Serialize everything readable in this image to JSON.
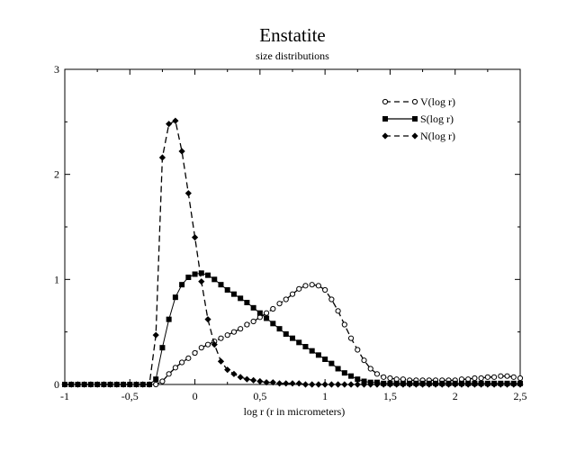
{
  "chart_data": {
    "type": "line",
    "title": "Enstatite",
    "subtitle": "size distributions",
    "xlabel": "log r (r in micrometers)",
    "ylabel": "",
    "xlim": [
      -1,
      2.5
    ],
    "ylim": [
      0,
      3
    ],
    "x_ticks": [
      -1,
      -0.5,
      0,
      0.5,
      1,
      1.5,
      2,
      2.5
    ],
    "x_tick_labels": [
      "-1",
      "-0,5",
      "0",
      "0,5",
      "1",
      "1,5",
      "2",
      "2,5"
    ],
    "y_ticks": [
      0,
      1,
      2,
      3
    ],
    "y_tick_labels": [
      "0",
      "1",
      "2",
      "3"
    ],
    "grid": false,
    "legend_position": "top-right",
    "series": [
      {
        "name": "V(log r)",
        "style": "dashed",
        "marker": "open-circle",
        "color": "#000000",
        "x": [
          -1,
          -0.95,
          -0.9,
          -0.85,
          -0.8,
          -0.75,
          -0.7,
          -0.65,
          -0.6,
          -0.55,
          -0.5,
          -0.45,
          -0.4,
          -0.35,
          -0.3,
          -0.25,
          -0.2,
          -0.15,
          -0.1,
          -0.05,
          0,
          0.05,
          0.1,
          0.15,
          0.2,
          0.25,
          0.3,
          0.35,
          0.4,
          0.45,
          0.5,
          0.55,
          0.6,
          0.65,
          0.7,
          0.75,
          0.8,
          0.85,
          0.9,
          0.95,
          1,
          1.05,
          1.1,
          1.15,
          1.2,
          1.25,
          1.3,
          1.35,
          1.4,
          1.45,
          1.5,
          1.55,
          1.6,
          1.65,
          1.7,
          1.75,
          1.8,
          1.85,
          1.9,
          1.95,
          2,
          2.05,
          2.1,
          2.15,
          2.2,
          2.25,
          2.3,
          2.35,
          2.4,
          2.45,
          2.5
        ],
        "values": [
          0,
          0,
          0,
          0,
          0,
          0,
          0,
          0,
          0,
          0,
          0,
          0,
          0,
          0,
          0,
          0.03,
          0.1,
          0.16,
          0.21,
          0.25,
          0.3,
          0.35,
          0.38,
          0.41,
          0.44,
          0.47,
          0.5,
          0.53,
          0.57,
          0.6,
          0.64,
          0.68,
          0.72,
          0.77,
          0.81,
          0.86,
          0.91,
          0.94,
          0.95,
          0.94,
          0.9,
          0.81,
          0.7,
          0.57,
          0.44,
          0.33,
          0.23,
          0.15,
          0.1,
          0.07,
          0.06,
          0.05,
          0.05,
          0.04,
          0.04,
          0.04,
          0.04,
          0.04,
          0.04,
          0.04,
          0.04,
          0.05,
          0.05,
          0.06,
          0.06,
          0.07,
          0.07,
          0.08,
          0.08,
          0.07,
          0.06
        ]
      },
      {
        "name": "S(log r)",
        "style": "solid",
        "marker": "filled-square",
        "color": "#000000",
        "x": [
          -1,
          -0.95,
          -0.9,
          -0.85,
          -0.8,
          -0.75,
          -0.7,
          -0.65,
          -0.6,
          -0.55,
          -0.5,
          -0.45,
          -0.4,
          -0.35,
          -0.3,
          -0.25,
          -0.2,
          -0.15,
          -0.1,
          -0.05,
          0,
          0.05,
          0.1,
          0.15,
          0.2,
          0.25,
          0.3,
          0.35,
          0.4,
          0.45,
          0.5,
          0.55,
          0.6,
          0.65,
          0.7,
          0.75,
          0.8,
          0.85,
          0.9,
          0.95,
          1,
          1.05,
          1.1,
          1.15,
          1.2,
          1.25,
          1.3,
          1.35,
          1.4,
          1.45,
          1.5,
          1.55,
          1.6,
          1.65,
          1.7,
          1.75,
          1.8,
          1.85,
          1.9,
          1.95,
          2,
          2.05,
          2.1,
          2.15,
          2.2,
          2.25,
          2.3,
          2.35,
          2.4,
          2.45,
          2.5
        ],
        "values": [
          0,
          0,
          0,
          0,
          0,
          0,
          0,
          0,
          0,
          0,
          0,
          0,
          0,
          0,
          0.05,
          0.35,
          0.62,
          0.83,
          0.95,
          1.02,
          1.05,
          1.06,
          1.04,
          1.0,
          0.95,
          0.9,
          0.86,
          0.82,
          0.78,
          0.73,
          0.68,
          0.63,
          0.58,
          0.53,
          0.48,
          0.44,
          0.4,
          0.36,
          0.32,
          0.28,
          0.24,
          0.2,
          0.15,
          0.11,
          0.08,
          0.05,
          0.03,
          0.02,
          0.02,
          0.01,
          0.01,
          0.01,
          0.01,
          0.01,
          0.01,
          0.01,
          0.01,
          0.01,
          0.01,
          0.01,
          0.01,
          0.01,
          0.01,
          0.01,
          0.01,
          0.01,
          0.01,
          0.01,
          0.01,
          0.01,
          0.01
        ]
      },
      {
        "name": "N(log r)",
        "style": "dashed",
        "marker": "filled-diamond",
        "color": "#000000",
        "x": [
          -1,
          -0.95,
          -0.9,
          -0.85,
          -0.8,
          -0.75,
          -0.7,
          -0.65,
          -0.6,
          -0.55,
          -0.5,
          -0.45,
          -0.4,
          -0.35,
          -0.3,
          -0.25,
          -0.2,
          -0.15,
          -0.1,
          -0.05,
          0,
          0.05,
          0.1,
          0.15,
          0.2,
          0.25,
          0.3,
          0.35,
          0.4,
          0.45,
          0.5,
          0.55,
          0.6,
          0.65,
          0.7,
          0.75,
          0.8,
          0.85,
          0.9,
          0.95,
          1,
          1.05,
          1.1,
          1.15,
          1.2,
          1.25,
          1.3,
          1.35,
          1.4,
          1.45,
          1.5,
          1.55,
          1.6,
          1.65,
          1.7,
          1.75,
          1.8,
          1.85,
          1.9,
          1.95,
          2,
          2.05,
          2.1,
          2.15,
          2.2,
          2.25,
          2.3,
          2.35,
          2.4,
          2.45,
          2.5
        ],
        "values": [
          0,
          0,
          0,
          0,
          0,
          0,
          0,
          0,
          0,
          0,
          0,
          0,
          0,
          0,
          0.47,
          2.16,
          2.48,
          2.51,
          2.22,
          1.82,
          1.4,
          0.98,
          0.62,
          0.38,
          0.22,
          0.14,
          0.1,
          0.07,
          0.05,
          0.04,
          0.03,
          0.02,
          0.02,
          0.01,
          0.01,
          0.01,
          0.01,
          0,
          0,
          0,
          0,
          0,
          0,
          0,
          0,
          0,
          0,
          0,
          0,
          0,
          0,
          0,
          0,
          0,
          0,
          0,
          0,
          0,
          0,
          0,
          0,
          0,
          0,
          0,
          0,
          0,
          0,
          0,
          0,
          0,
          0
        ]
      }
    ]
  }
}
